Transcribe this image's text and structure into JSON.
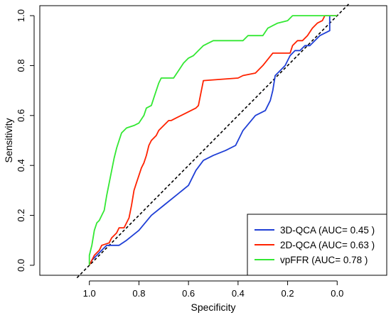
{
  "chart_data": {
    "type": "line",
    "xlabel": "Specificity",
    "ylabel": "Sensitivity",
    "xlim": [
      1.2,
      -0.2
    ],
    "ylim": [
      -0.04,
      1.04
    ],
    "x_reversed": true,
    "x_ticks": [
      1.0,
      0.8,
      0.6,
      0.4,
      0.2,
      0.0
    ],
    "x_tick_labels": [
      "1.0",
      "0.8",
      "0.6",
      "0.4",
      "0.2",
      "0.0"
    ],
    "y_ticks": [
      0.0,
      0.2,
      0.4,
      0.6,
      0.8,
      1.0
    ],
    "y_tick_labels": [
      "0.0",
      "0.2",
      "0.4",
      "0.6",
      "0.8",
      "1.0"
    ],
    "grid": false,
    "legend_position": "bottom-right",
    "diagonal": {
      "style": "dashed",
      "color": "#000000",
      "from": [
        1.0,
        0.0
      ],
      "to": [
        0.0,
        1.0
      ]
    },
    "series": [
      {
        "name": "3D-QCA (AUC= 0.45 )",
        "color": "#1f3fd6",
        "points": [
          [
            1.0,
            0.0
          ],
          [
            0.99,
            0.02
          ],
          [
            0.97,
            0.04
          ],
          [
            0.95,
            0.06
          ],
          [
            0.93,
            0.08
          ],
          [
            0.88,
            0.08
          ],
          [
            0.85,
            0.1
          ],
          [
            0.8,
            0.14
          ],
          [
            0.75,
            0.2
          ],
          [
            0.7,
            0.24
          ],
          [
            0.65,
            0.28
          ],
          [
            0.6,
            0.32
          ],
          [
            0.57,
            0.38
          ],
          [
            0.54,
            0.42
          ],
          [
            0.5,
            0.44
          ],
          [
            0.45,
            0.46
          ],
          [
            0.41,
            0.48
          ],
          [
            0.38,
            0.54
          ],
          [
            0.33,
            0.6
          ],
          [
            0.29,
            0.62
          ],
          [
            0.27,
            0.66
          ],
          [
            0.26,
            0.7
          ],
          [
            0.25,
            0.76
          ],
          [
            0.23,
            0.78
          ],
          [
            0.21,
            0.8
          ],
          [
            0.19,
            0.84
          ],
          [
            0.17,
            0.86
          ],
          [
            0.15,
            0.86
          ],
          [
            0.13,
            0.88
          ],
          [
            0.11,
            0.88
          ],
          [
            0.09,
            0.9
          ],
          [
            0.07,
            0.92
          ],
          [
            0.05,
            0.93
          ],
          [
            0.03,
            0.94
          ],
          [
            0.03,
            1.0
          ]
        ]
      },
      {
        "name": "2D-QCA (AUC= 0.63 )",
        "color": "#ff2200",
        "points": [
          [
            1.0,
            0.0
          ],
          [
            0.99,
            0.02
          ],
          [
            0.98,
            0.04
          ],
          [
            0.96,
            0.06
          ],
          [
            0.95,
            0.08
          ],
          [
            0.92,
            0.09
          ],
          [
            0.91,
            0.11
          ],
          [
            0.89,
            0.13
          ],
          [
            0.88,
            0.15
          ],
          [
            0.87,
            0.15
          ],
          [
            0.86,
            0.15
          ],
          [
            0.85,
            0.17
          ],
          [
            0.84,
            0.19
          ],
          [
            0.83,
            0.24
          ],
          [
            0.82,
            0.3
          ],
          [
            0.81,
            0.33
          ],
          [
            0.8,
            0.36
          ],
          [
            0.79,
            0.39
          ],
          [
            0.78,
            0.41
          ],
          [
            0.77,
            0.44
          ],
          [
            0.76,
            0.48
          ],
          [
            0.75,
            0.5
          ],
          [
            0.73,
            0.52
          ],
          [
            0.72,
            0.54
          ],
          [
            0.71,
            0.55
          ],
          [
            0.7,
            0.56
          ],
          [
            0.68,
            0.58
          ],
          [
            0.67,
            0.58
          ],
          [
            0.65,
            0.59
          ],
          [
            0.63,
            0.6
          ],
          [
            0.61,
            0.61
          ],
          [
            0.59,
            0.62
          ],
          [
            0.57,
            0.63
          ],
          [
            0.56,
            0.64
          ],
          [
            0.55,
            0.69
          ],
          [
            0.54,
            0.74
          ],
          [
            0.4,
            0.75
          ],
          [
            0.38,
            0.76
          ],
          [
            0.33,
            0.77
          ],
          [
            0.3,
            0.8
          ],
          [
            0.26,
            0.85
          ],
          [
            0.19,
            0.85
          ],
          [
            0.18,
            0.88
          ],
          [
            0.16,
            0.9
          ],
          [
            0.14,
            0.9
          ],
          [
            0.12,
            0.92
          ],
          [
            0.1,
            0.95
          ],
          [
            0.08,
            0.97
          ],
          [
            0.06,
            0.98
          ],
          [
            0.05,
            1.0
          ],
          [
            0.0,
            1.0
          ]
        ]
      },
      {
        "name": "vpFFR (AUC= 0.78 )",
        "color": "#33e833",
        "points": [
          [
            1.0,
            0.0
          ],
          [
            1.0,
            0.04
          ],
          [
            0.99,
            0.08
          ],
          [
            0.98,
            0.14
          ],
          [
            0.97,
            0.17
          ],
          [
            0.96,
            0.18
          ],
          [
            0.95,
            0.2
          ],
          [
            0.94,
            0.22
          ],
          [
            0.93,
            0.28
          ],
          [
            0.92,
            0.33
          ],
          [
            0.91,
            0.38
          ],
          [
            0.9,
            0.43
          ],
          [
            0.89,
            0.47
          ],
          [
            0.88,
            0.5
          ],
          [
            0.87,
            0.53
          ],
          [
            0.85,
            0.55
          ],
          [
            0.82,
            0.56
          ],
          [
            0.8,
            0.57
          ],
          [
            0.78,
            0.6
          ],
          [
            0.77,
            0.63
          ],
          [
            0.75,
            0.64
          ],
          [
            0.74,
            0.67
          ],
          [
            0.73,
            0.7
          ],
          [
            0.72,
            0.73
          ],
          [
            0.71,
            0.75
          ],
          [
            0.66,
            0.75
          ],
          [
            0.64,
            0.78
          ],
          [
            0.62,
            0.81
          ],
          [
            0.6,
            0.83
          ],
          [
            0.58,
            0.84
          ],
          [
            0.56,
            0.86
          ],
          [
            0.54,
            0.88
          ],
          [
            0.52,
            0.89
          ],
          [
            0.5,
            0.9
          ],
          [
            0.38,
            0.9
          ],
          [
            0.36,
            0.92
          ],
          [
            0.3,
            0.92
          ],
          [
            0.28,
            0.95
          ],
          [
            0.26,
            0.96
          ],
          [
            0.24,
            0.97
          ],
          [
            0.2,
            0.98
          ],
          [
            0.18,
            1.0
          ],
          [
            0.0,
            1.0
          ]
        ]
      }
    ]
  }
}
